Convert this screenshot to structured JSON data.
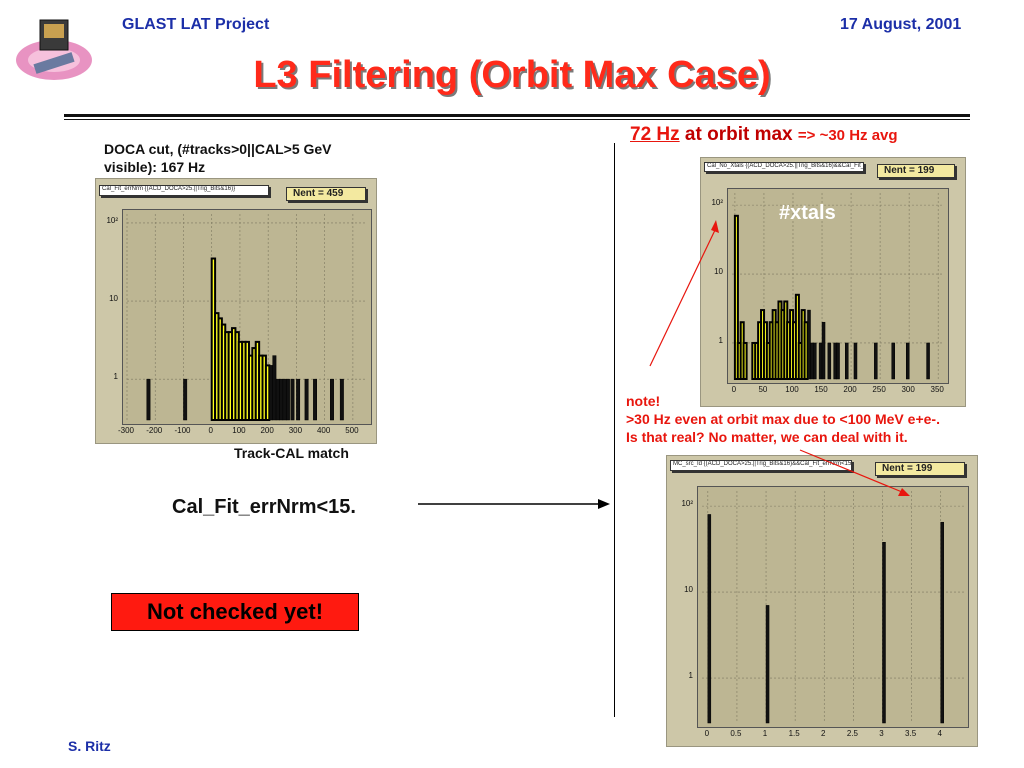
{
  "header": {
    "project": "GLAST LAT Project",
    "date": "17 August, 2001",
    "logo_icon": "glast-satellite-icon"
  },
  "title": "L3 Filtering (Orbit Max Case)",
  "left": {
    "caption_line1": "DOCA cut, (#tracks>0||CAL>5 GeV",
    "caption_line2": "visible): 167 Hz",
    "hist_title": "Cal_Fit_errNrm {(ACD_DOCA>25.||Trig_Bits&16)}",
    "nent": "Nent = 459",
    "xlabel": "Track-CAL match",
    "cut_label": "Cal_Fit_errNrm<15."
  },
  "right": {
    "rate_link": "72 Hz",
    "rate_text": " at orbit max ",
    "rate_avg": "=> ~30 Hz avg",
    "hist1_title": "Cal_No_Xtals {(ACD_DOCA>25.||Trig_Bits&16)&&Cal_Fit_errNrm<15.}",
    "hist1_nent": "Nent = 199",
    "xtals_label": "#xtals",
    "note_title": "note!",
    "note_line1": ">30 Hz even at orbit max due to <100 MeV e+e-.",
    "note_line2": "Is that real?  No matter, we can deal with it.",
    "hist2_title": "MC_src_Id {(ACD_DOCA>25.||Trig_Bits&16)&&Cal_Fit_errNrm<15.}",
    "hist2_nent": "Nent = 199"
  },
  "not_checked": "Not checked yet!",
  "footer": {
    "author": "S. Ritz"
  },
  "colors": {
    "fill": "#ffff1e",
    "title_red": "#ff2a1a",
    "header_blue": "#1c2fa8",
    "panel": "#cdc7a8"
  },
  "chart_data": [
    {
      "type": "bar",
      "title": "",
      "log_y": true,
      "xlim": [
        -300,
        550
      ],
      "ylim": [
        0.3,
        130
      ],
      "x_ticks": [
        -300,
        -200,
        -100,
        0,
        100,
        200,
        300,
        400,
        500
      ],
      "y_ticks": [
        {
          "v": 1,
          "l": "1"
        },
        {
          "v": 10,
          "l": "10"
        },
        {
          "v": 100,
          "l": "10²"
        }
      ],
      "bins": [
        [
          -230,
          1
        ],
        [
          -100,
          1
        ],
        [
          0,
          35
        ],
        [
          12,
          7
        ],
        [
          24,
          6
        ],
        [
          36,
          5
        ],
        [
          48,
          4
        ],
        [
          60,
          4
        ],
        [
          72,
          4.5
        ],
        [
          84,
          4
        ],
        [
          96,
          3
        ],
        [
          108,
          3
        ],
        [
          120,
          3
        ],
        [
          132,
          2
        ],
        [
          144,
          2.5
        ],
        [
          156,
          3
        ],
        [
          168,
          2
        ],
        [
          180,
          2
        ],
        [
          192,
          1.5
        ],
        [
          204,
          1.5
        ],
        [
          216,
          2
        ],
        [
          228,
          1
        ],
        [
          240,
          1
        ],
        [
          252,
          1
        ],
        [
          264,
          1
        ],
        [
          280,
          1
        ],
        [
          300,
          1
        ],
        [
          330,
          1
        ],
        [
          360,
          1
        ],
        [
          420,
          1
        ],
        [
          455,
          1
        ]
      ],
      "binwidth": 12,
      "fill_until": 204
    },
    {
      "type": "bar",
      "title": "",
      "log_y": true,
      "xlim": [
        -5,
        360
      ],
      "ylim": [
        0.3,
        150
      ],
      "x_ticks": [
        0,
        50,
        100,
        150,
        200,
        250,
        300,
        350
      ],
      "y_ticks": [
        {
          "v": 1,
          "l": "1"
        },
        {
          "v": 10,
          "l": "10"
        },
        {
          "v": 100,
          "l": "10²"
        }
      ],
      "bins": [
        [
          0,
          70
        ],
        [
          5,
          1
        ],
        [
          10,
          2
        ],
        [
          15,
          1
        ],
        [
          30,
          1
        ],
        [
          35,
          1
        ],
        [
          40,
          2
        ],
        [
          45,
          3
        ],
        [
          50,
          2
        ],
        [
          55,
          1
        ],
        [
          60,
          2
        ],
        [
          65,
          3
        ],
        [
          70,
          2
        ],
        [
          75,
          4
        ],
        [
          80,
          3
        ],
        [
          85,
          4
        ],
        [
          90,
          2
        ],
        [
          95,
          3
        ],
        [
          100,
          2
        ],
        [
          105,
          5
        ],
        [
          110,
          1
        ],
        [
          115,
          3
        ],
        [
          120,
          2
        ],
        [
          125,
          3
        ],
        [
          130,
          1
        ],
        [
          135,
          1
        ],
        [
          145,
          1
        ],
        [
          150,
          2
        ],
        [
          160,
          1
        ],
        [
          170,
          1
        ],
        [
          175,
          1
        ],
        [
          190,
          1
        ],
        [
          205,
          1
        ],
        [
          240,
          1
        ],
        [
          270,
          1
        ],
        [
          295,
          1
        ],
        [
          330,
          1
        ]
      ],
      "binwidth": 5,
      "fill_until": 125
    },
    {
      "type": "bar",
      "title": "",
      "log_y": true,
      "xlim": [
        -0.1,
        4.4
      ],
      "ylim": [
        0.3,
        150
      ],
      "x_ticks": [
        0,
        0.5,
        1,
        1.5,
        2,
        2.5,
        3,
        3.5,
        4
      ],
      "y_ticks": [
        {
          "v": 1,
          "l": "1"
        },
        {
          "v": 10,
          "l": "10"
        },
        {
          "v": 100,
          "l": "10²"
        }
      ],
      "bins": [
        [
          0,
          80
        ],
        [
          1,
          7
        ],
        [
          3,
          38
        ],
        [
          4,
          65
        ]
      ],
      "binwidth": 0.03,
      "fill_until": -1
    }
  ]
}
